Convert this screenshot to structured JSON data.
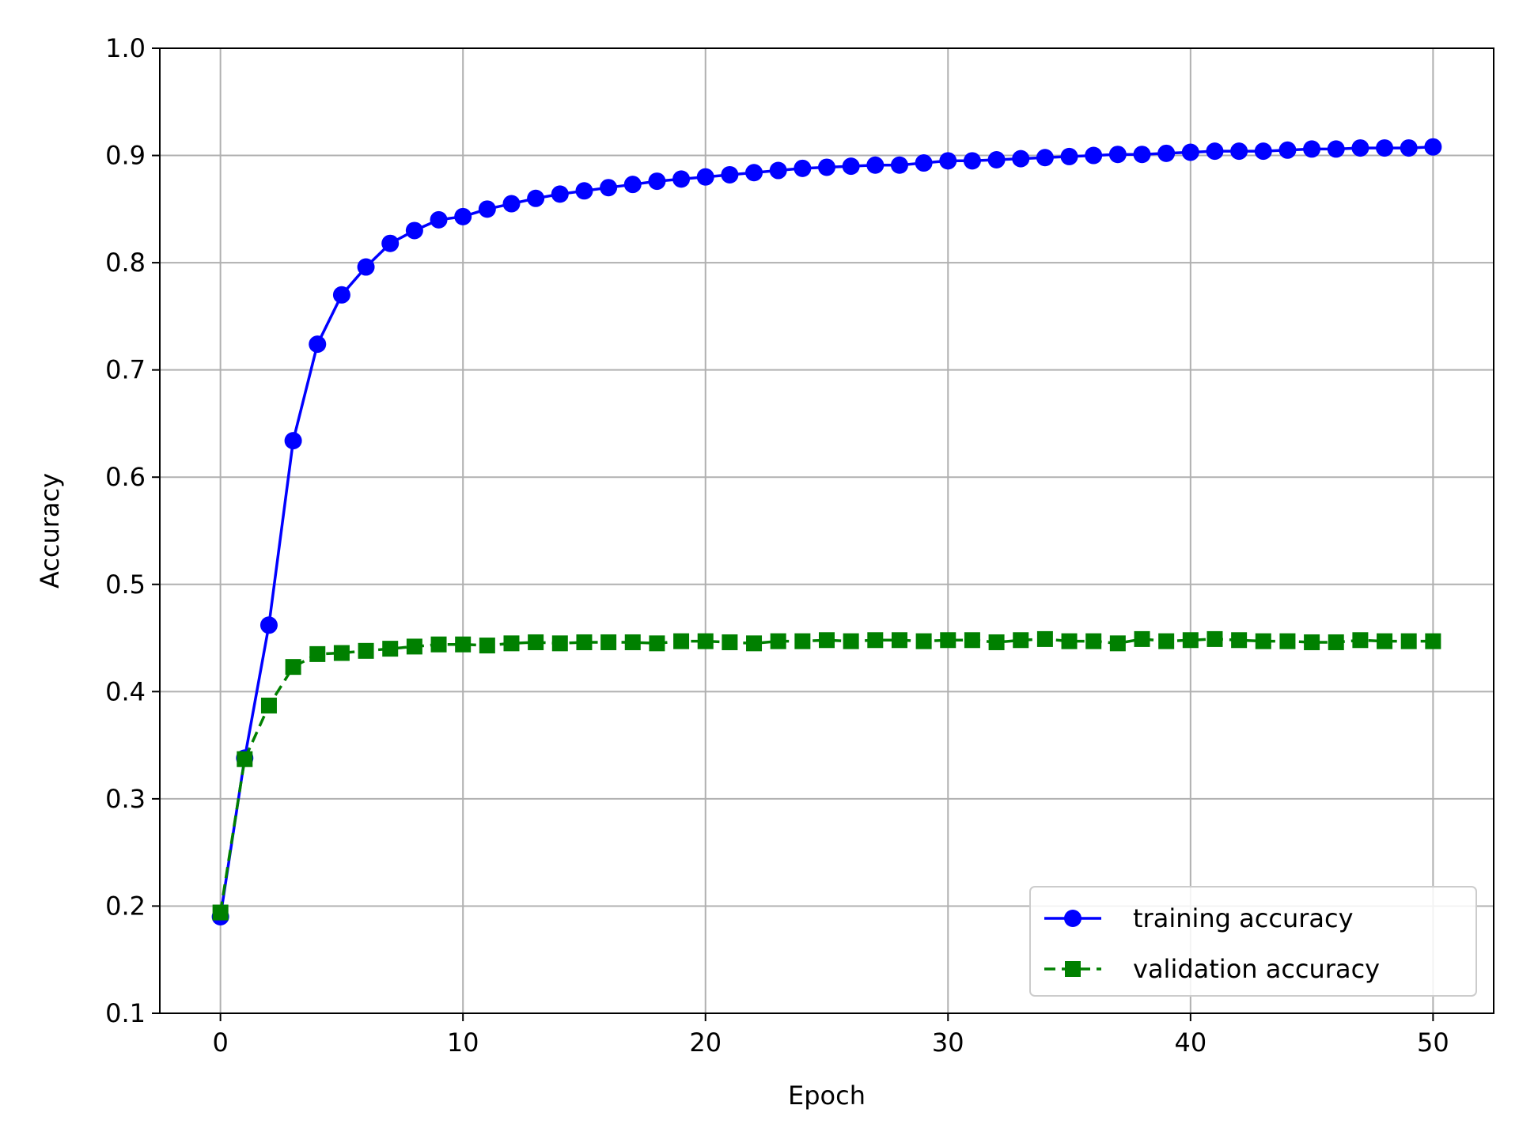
{
  "chart_data": {
    "type": "line",
    "title": "",
    "xlabel": "Epoch",
    "ylabel": "Accuracy",
    "xlim": [
      -2.5,
      52.5
    ],
    "ylim": [
      0.1,
      1.0
    ],
    "xticks": [
      0,
      10,
      20,
      30,
      40,
      50
    ],
    "yticks": [
      0.1,
      0.2,
      0.3,
      0.4,
      0.5,
      0.6,
      0.7,
      0.8,
      0.9,
      1.0
    ],
    "grid": true,
    "legend_position": "lower-right",
    "x": [
      0,
      1,
      2,
      3,
      4,
      5,
      6,
      7,
      8,
      9,
      10,
      11,
      12,
      13,
      14,
      15,
      16,
      17,
      18,
      19,
      20,
      21,
      22,
      23,
      24,
      25,
      26,
      27,
      28,
      29,
      30,
      31,
      32,
      33,
      34,
      35,
      36,
      37,
      38,
      39,
      40,
      41,
      42,
      43,
      44,
      45,
      46,
      47,
      48,
      49,
      50
    ],
    "series": [
      {
        "name": "training accuracy",
        "color": "#0000ff",
        "line_style": "solid",
        "marker": "circle",
        "values": [
          0.19,
          0.338,
          0.462,
          0.634,
          0.724,
          0.77,
          0.796,
          0.818,
          0.83,
          0.84,
          0.843,
          0.85,
          0.855,
          0.86,
          0.864,
          0.867,
          0.87,
          0.873,
          0.876,
          0.878,
          0.88,
          0.882,
          0.884,
          0.886,
          0.888,
          0.889,
          0.89,
          0.891,
          0.891,
          0.893,
          0.895,
          0.895,
          0.896,
          0.897,
          0.898,
          0.899,
          0.9,
          0.901,
          0.901,
          0.902,
          0.903,
          0.904,
          0.904,
          0.904,
          0.905,
          0.906,
          0.906,
          0.907,
          0.907,
          0.907,
          0.908
        ]
      },
      {
        "name": "validation accuracy",
        "color": "#008000",
        "line_style": "dashed",
        "marker": "square",
        "values": [
          0.194,
          0.337,
          0.387,
          0.423,
          0.435,
          0.436,
          0.438,
          0.44,
          0.442,
          0.444,
          0.444,
          0.443,
          0.445,
          0.446,
          0.445,
          0.446,
          0.446,
          0.446,
          0.445,
          0.447,
          0.447,
          0.446,
          0.445,
          0.447,
          0.447,
          0.448,
          0.447,
          0.448,
          0.448,
          0.447,
          0.448,
          0.448,
          0.446,
          0.448,
          0.449,
          0.447,
          0.447,
          0.445,
          0.449,
          0.447,
          0.448,
          0.449,
          0.448,
          0.447,
          0.447,
          0.446,
          0.446,
          0.448,
          0.447,
          0.447,
          0.447
        ]
      }
    ]
  }
}
